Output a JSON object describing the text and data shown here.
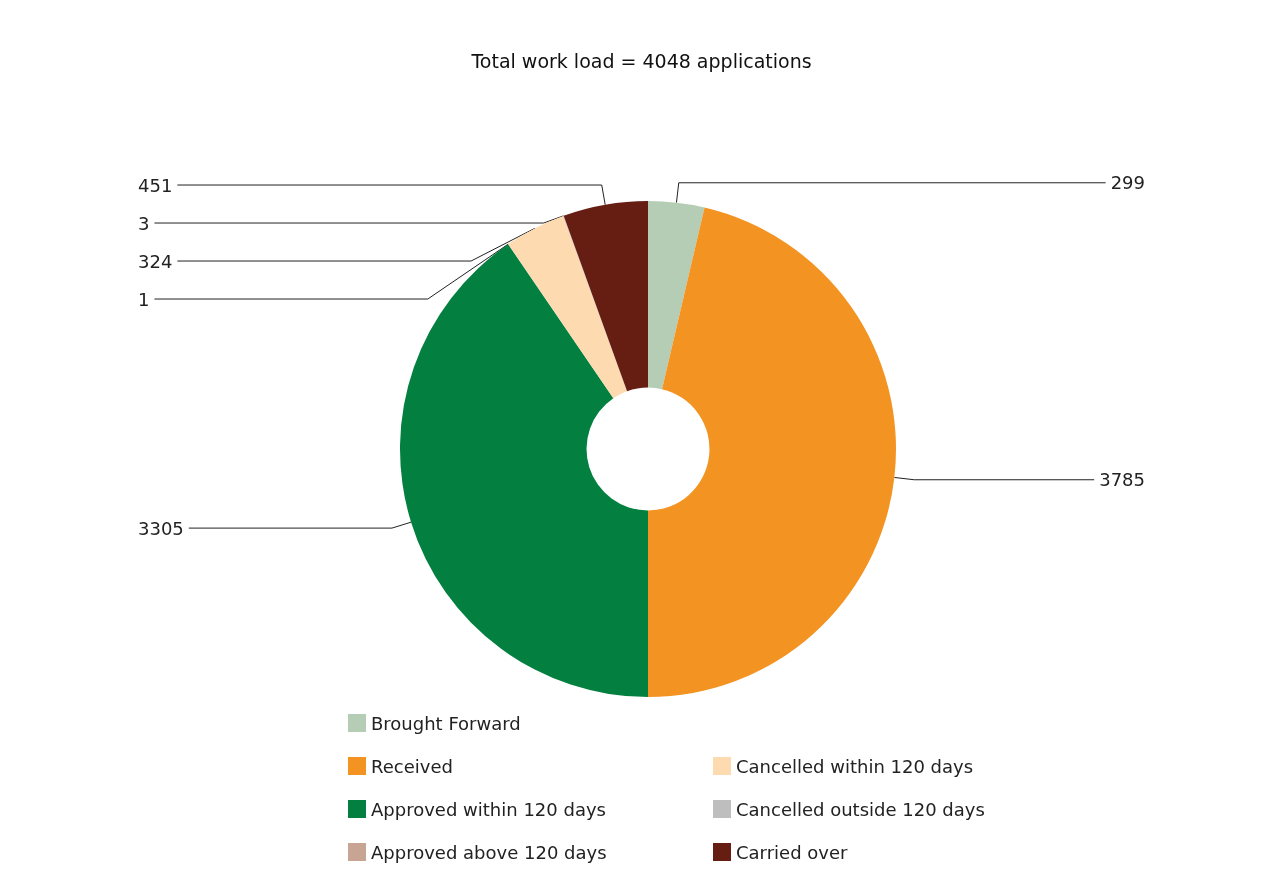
{
  "chart_data": {
    "type": "donut",
    "title": "Total work load = 4048 applications",
    "categories": [
      "Brought Forward",
      "Received",
      "Approved within 120 days",
      "Approved above 120 days",
      "Cancelled within 120 days",
      "Cancelled outside 120 days",
      "Carried over"
    ],
    "values": [
      299,
      3785,
      3305,
      1,
      324,
      3,
      451
    ],
    "colors": [
      "#b5cdb4",
      "#f39322",
      "#038040",
      "#c8a593",
      "#fddab0",
      "#bebebe",
      "#661e12"
    ],
    "data_labels": true,
    "legend": "bottom"
  }
}
